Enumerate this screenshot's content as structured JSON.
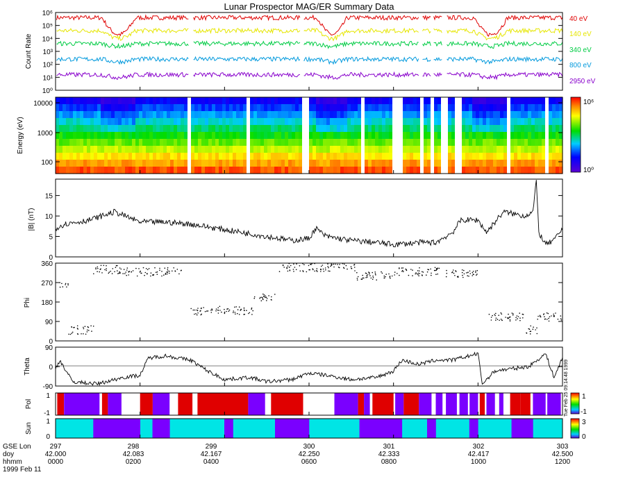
{
  "title": "Lunar Prospector MAG/ER Summary Data",
  "stamp": "Tue Feb 25 09:14:48 1999",
  "colors": {
    "red": "#e00000",
    "yellow": "#e6e600",
    "green": "#00cc44",
    "blue": "#0099dd",
    "purple": "#8800cc",
    "cyan": "#00e5e5",
    "violet": "#7a00ff"
  },
  "chart_data": [
    {
      "type": "line",
      "name": "count-rate",
      "ylabel": "Count Rate",
      "yscale": "log",
      "ylim_exp": [
        0,
        6
      ],
      "ytick_labels": [
        "10⁰",
        "10¹",
        "10²",
        "10³",
        "10⁴",
        "10⁵",
        "10⁶"
      ],
      "series": [
        {
          "name": "40 eV",
          "color": "#e00000",
          "base": 5.6
        },
        {
          "name": "140 eV",
          "color": "#e6e600",
          "base": 4.6
        },
        {
          "name": "340 eV",
          "color": "#00cc44",
          "base": 3.6
        },
        {
          "name": "800 eV",
          "color": "#0099dd",
          "base": 2.4
        },
        {
          "name": "2950 eV",
          "color": "#8800cc",
          "base": 1.2
        }
      ]
    },
    {
      "type": "heatmap",
      "name": "energy-spectrogram",
      "ylabel": "Energy (eV)",
      "yscale": "log",
      "yticks": [
        100,
        1000,
        10000
      ],
      "ytick_labels": [
        "100",
        "1000",
        "10000"
      ],
      "colorbar_labels": [
        "10⁰",
        "10⁶"
      ]
    },
    {
      "type": "line",
      "name": "b-magnitude",
      "ylabel": "|B| (nT)",
      "ylim": [
        0,
        19
      ],
      "ytick_labels": [
        "0",
        "5",
        "10",
        "15"
      ],
      "keypoints": [
        [
          297,
          7
        ],
        [
          297.1,
          8
        ],
        [
          297.4,
          9
        ],
        [
          297.7,
          11
        ],
        [
          298.0,
          8.5
        ],
        [
          298.3,
          8.5
        ],
        [
          298.6,
          8
        ],
        [
          298.9,
          7
        ],
        [
          299.2,
          6
        ],
        [
          299.5,
          5
        ],
        [
          299.8,
          4
        ],
        [
          300.0,
          4.5
        ],
        [
          300.08,
          7
        ],
        [
          300.2,
          5
        ],
        [
          300.5,
          4
        ],
        [
          300.8,
          3.5
        ],
        [
          301.0,
          3
        ],
        [
          301.3,
          3.5
        ],
        [
          301.5,
          3.5
        ],
        [
          301.7,
          6
        ],
        [
          301.8,
          9
        ],
        [
          302.0,
          9
        ],
        [
          302.1,
          6
        ],
        [
          302.3,
          11
        ],
        [
          302.55,
          10
        ],
        [
          302.65,
          11
        ],
        [
          302.69,
          18.5
        ],
        [
          302.72,
          6
        ],
        [
          302.8,
          3
        ],
        [
          302.9,
          4
        ],
        [
          303.0,
          7
        ]
      ]
    },
    {
      "type": "scatter",
      "name": "phi",
      "ylabel": "Phi",
      "ylim": [
        0,
        360
      ],
      "ytick_labels": [
        "0",
        "90",
        "180",
        "270",
        "360"
      ],
      "segments": [
        [
          297.05,
          297.15,
          260,
          -1
        ],
        [
          297.15,
          297.45,
          50,
          -1
        ],
        [
          297.45,
          297.75,
          330,
          -1
        ],
        [
          297.75,
          298.5,
          320,
          -1
        ],
        [
          298.6,
          299.35,
          140,
          -1
        ],
        [
          299.35,
          299.6,
          200,
          -1
        ],
        [
          299.65,
          300.55,
          340,
          -1
        ],
        [
          300.55,
          301.0,
          300,
          -1
        ],
        [
          301.0,
          301.55,
          320,
          -1
        ],
        [
          301.6,
          302.0,
          310,
          -1
        ],
        [
          302.1,
          302.55,
          110,
          -1
        ],
        [
          302.55,
          302.7,
          50,
          -1
        ],
        [
          302.7,
          303.0,
          110,
          -1
        ]
      ]
    },
    {
      "type": "line",
      "name": "theta",
      "ylabel": "Theta",
      "ylim": [
        -90,
        90
      ],
      "ytick_labels": [
        "-90",
        "0",
        "90"
      ],
      "keypoints": [
        [
          297,
          -10
        ],
        [
          297.05,
          30
        ],
        [
          297.2,
          -70
        ],
        [
          297.5,
          -80
        ],
        [
          297.8,
          -50
        ],
        [
          298.0,
          -40
        ],
        [
          298.1,
          40
        ],
        [
          298.3,
          50
        ],
        [
          298.6,
          30
        ],
        [
          298.8,
          -20
        ],
        [
          299.0,
          -60
        ],
        [
          299.3,
          -50
        ],
        [
          299.5,
          -70
        ],
        [
          299.8,
          -60
        ],
        [
          300.0,
          -30
        ],
        [
          300.2,
          -40
        ],
        [
          300.5,
          -60
        ],
        [
          300.8,
          -50
        ],
        [
          301.0,
          -20
        ],
        [
          301.1,
          30
        ],
        [
          301.3,
          10
        ],
        [
          301.5,
          30
        ],
        [
          301.7,
          30
        ],
        [
          301.9,
          50
        ],
        [
          302.0,
          60
        ],
        [
          302.05,
          -80
        ],
        [
          302.1,
          -60
        ],
        [
          302.2,
          -20
        ],
        [
          302.4,
          -10
        ],
        [
          302.6,
          0
        ],
        [
          302.8,
          60
        ],
        [
          302.9,
          -50
        ],
        [
          303.0,
          40
        ]
      ]
    },
    {
      "type": "heatmap",
      "name": "polarity",
      "ylabel": "Pol",
      "ytick_labels": [
        "1",
        "-1"
      ],
      "colorbar_labels": [
        "1",
        "-1"
      ]
    },
    {
      "type": "heatmap",
      "name": "sun",
      "ylabel": "Sun",
      "ytick_labels": [
        "1",
        "0"
      ],
      "colorbar_labels": [
        "3",
        "0"
      ]
    }
  ],
  "xaxis": {
    "row_labels": [
      "GSE Lon",
      "doy",
      "hhmm",
      "1999 Feb 11"
    ],
    "ticks": [
      {
        "lon": "297",
        "doy": "42.000",
        "hhmm": "0000"
      },
      {
        "lon": "298",
        "doy": "42.083",
        "hhmm": "0200"
      },
      {
        "lon": "299",
        "doy": "42.167",
        "hhmm": "0400"
      },
      {
        "lon": "300",
        "doy": "42.250",
        "hhmm": "0600"
      },
      {
        "lon": "301",
        "doy": "42.333",
        "hhmm": "0800"
      },
      {
        "lon": "302",
        "doy": "42.417",
        "hhmm": "1000"
      },
      {
        "lon": "303",
        "doy": "42.500",
        "hhmm": "1200"
      }
    ]
  }
}
